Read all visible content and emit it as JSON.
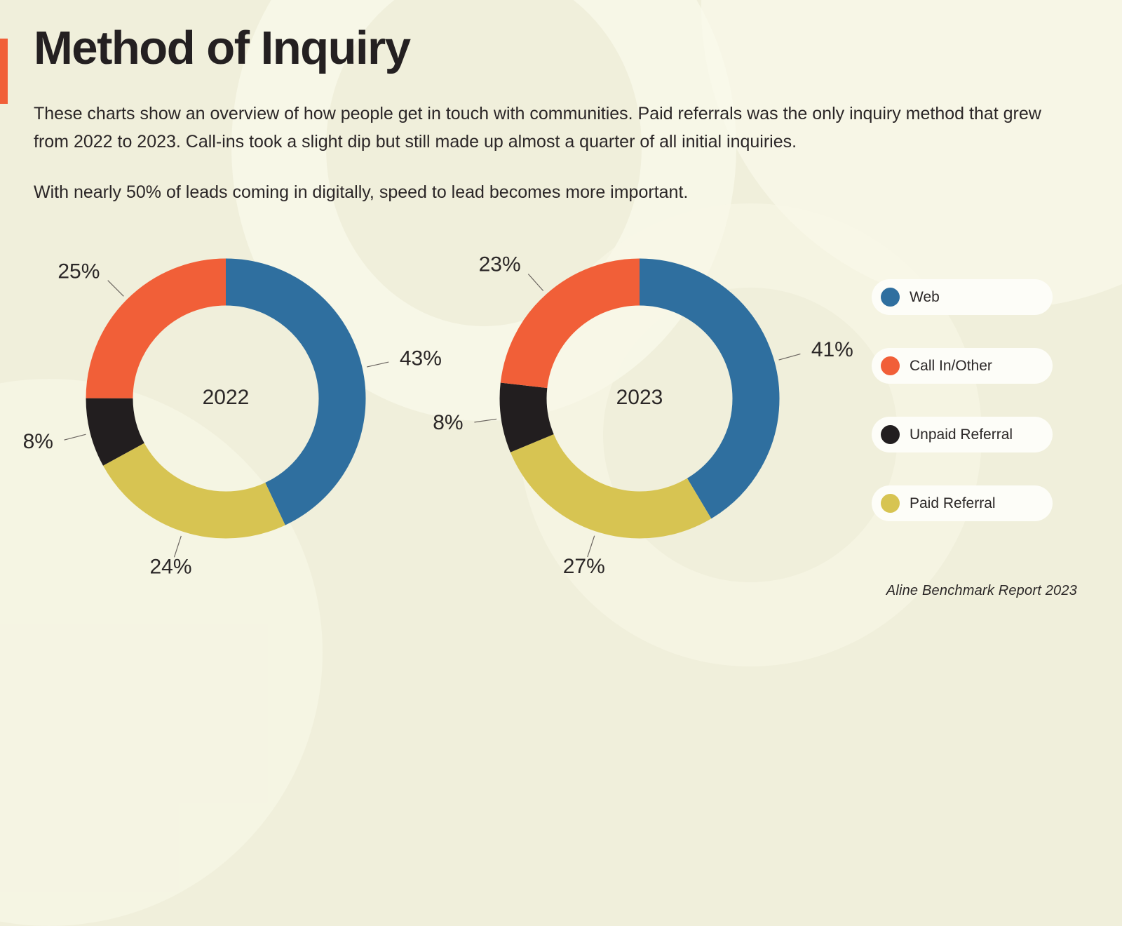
{
  "page": {
    "title": "Method of Inquiry",
    "paragraph1": "These charts show an overview of how people get in touch with communities. Paid referrals was the only inquiry method that grew from 2022 to 2023. Call-ins took a slight dip but still made up almost a quarter of all initial inquiries.",
    "paragraph2": "With nearly 50% of leads coming in digitally, speed to lead becomes more important.",
    "footer": "Aline Benchmark Report 2023"
  },
  "colors": {
    "accent": "#f15f38",
    "background": "#f0efdb",
    "web": "#2f6f9f",
    "call_in_other": "#f15f38",
    "unpaid_referral": "#221e1f",
    "paid_referral": "#d7c452",
    "text": "#2b2727"
  },
  "legend": [
    {
      "label": "Web",
      "color": "#2f6f9f"
    },
    {
      "label": "Call In/Other",
      "color": "#f15f38"
    },
    {
      "label": "Unpaid Referral",
      "color": "#221e1f"
    },
    {
      "label": "Paid Referral",
      "color": "#d7c452"
    }
  ],
  "chart_data": [
    {
      "type": "pie",
      "subtype": "donut",
      "center_label": "2022",
      "direction": "clockwise",
      "start_angle": "top",
      "legend_position": "right",
      "segments": [
        {
          "label": "Web",
          "value": 43,
          "display": "43%",
          "color": "#2f6f9f"
        },
        {
          "label": "Paid Referral",
          "value": 24,
          "display": "24%",
          "color": "#d7c452"
        },
        {
          "label": "Unpaid Referral",
          "value": 8,
          "display": "8%",
          "color": "#221e1f"
        },
        {
          "label": "Call In/Other",
          "value": 25,
          "display": "25%",
          "color": "#f15f38"
        }
      ]
    },
    {
      "type": "pie",
      "subtype": "donut",
      "center_label": "2023",
      "direction": "clockwise",
      "start_angle": "top",
      "legend_position": "right",
      "segments": [
        {
          "label": "Web",
          "value": 41,
          "display": "41%",
          "color": "#2f6f9f"
        },
        {
          "label": "Paid Referral",
          "value": 27,
          "display": "27%",
          "color": "#d7c452"
        },
        {
          "label": "Unpaid Referral",
          "value": 8,
          "display": "8%",
          "color": "#221e1f"
        },
        {
          "label": "Call In/Other",
          "value": 23,
          "display": "23%",
          "color": "#f15f38"
        }
      ]
    }
  ]
}
